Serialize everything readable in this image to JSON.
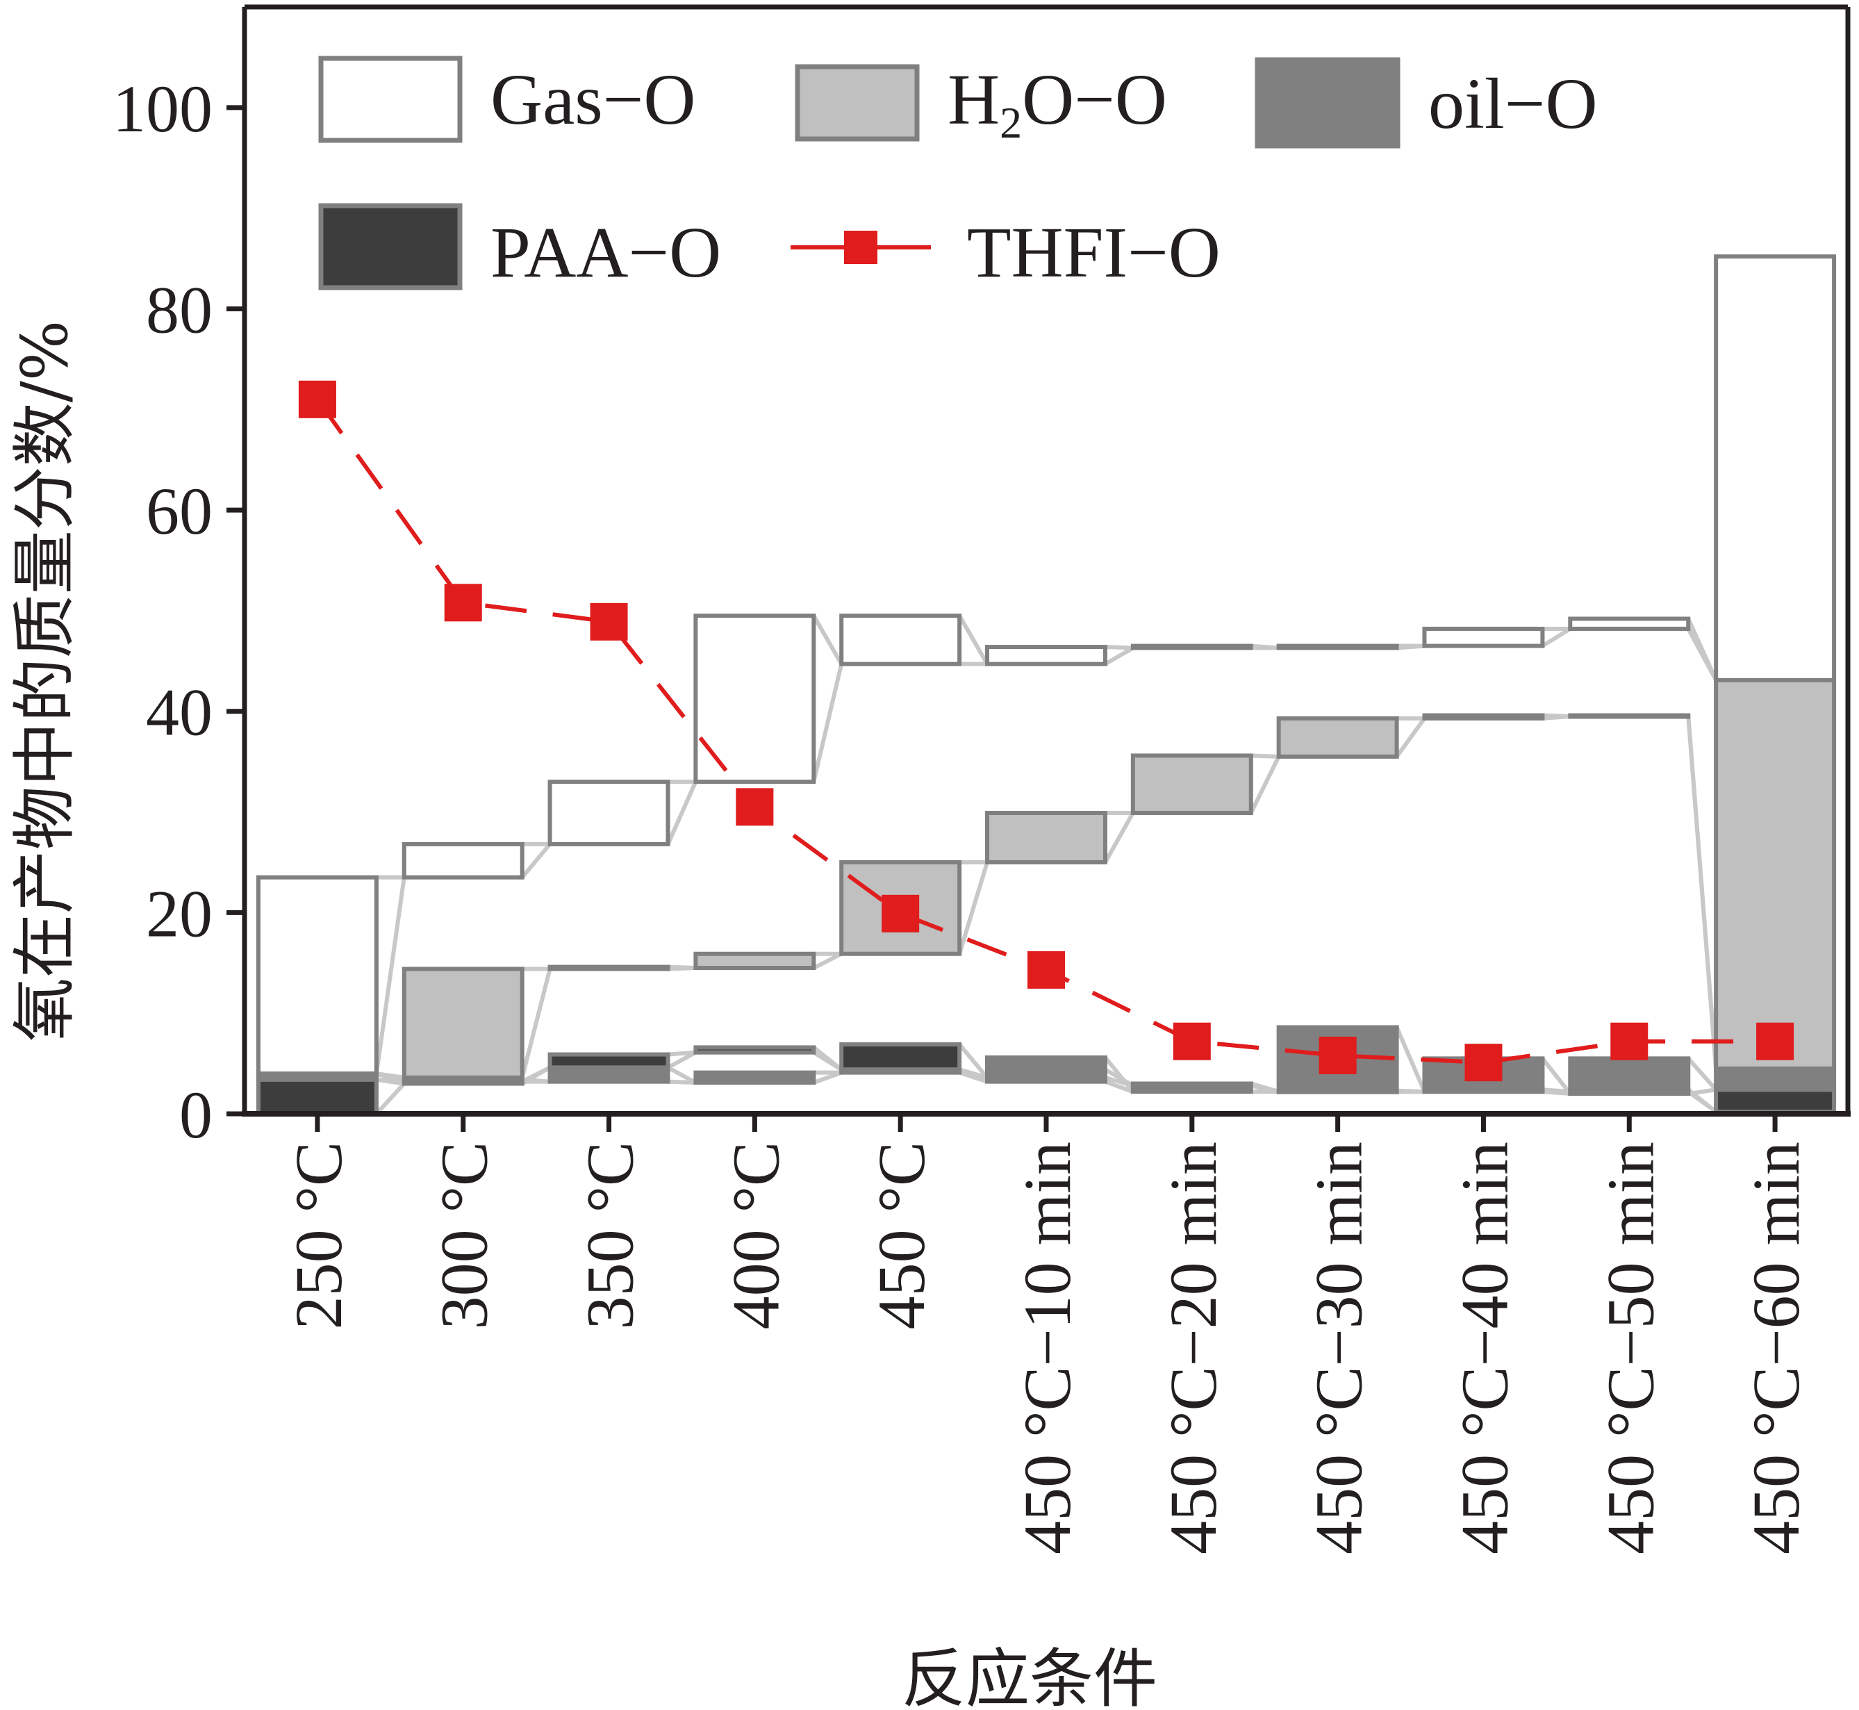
{
  "chart_data": {
    "type": "bar",
    "subtype": "waterfall",
    "title": "",
    "xlabel": "反应条件",
    "ylabel": "氧在产物中的质量分数/%",
    "ylim": [
      0,
      110
    ],
    "yticks": [
      0,
      20,
      40,
      60,
      80,
      100
    ],
    "grid": false,
    "legend_position": "top",
    "categories": [
      "250 °C",
      "300 °C",
      "350 °C",
      "400 °C",
      "450 °C",
      "450 °C−10 min",
      "450 °C−20 min",
      "450 °C−30 min",
      "450 °C−40 min",
      "450 °C−50 min",
      "450 °C−60 min"
    ],
    "series": [
      {
        "name": "PAA−O",
        "kind": "floating-bar",
        "color": "#3d3d3d",
        "ranges": [
          [
            0,
            3.4
          ],
          [
            3.0,
            3.2
          ],
          [
            4.6,
            5.9
          ],
          [
            6.1,
            6.6
          ],
          [
            4.4,
            6.9
          ],
          [
            3.6,
            4.4
          ],
          [
            2.8,
            3.0
          ],
          [
            2.2,
            2.3
          ],
          [
            2.2,
            2.4
          ],
          [
            2.2,
            2.4
          ],
          [
            0.2,
            2.4
          ]
        ]
      },
      {
        "name": "oil−O",
        "kind": "floating-bar",
        "color": "#808080",
        "ranges": [
          [
            3.4,
            4.0
          ],
          [
            3.2,
            3.4
          ],
          [
            3.2,
            4.6
          ],
          [
            3.1,
            4.1
          ],
          [
            4.1,
            4.4
          ],
          [
            3.2,
            5.6
          ],
          [
            2.2,
            3.0
          ],
          [
            2.2,
            8.6
          ],
          [
            2.2,
            5.5
          ],
          [
            2.0,
            5.5
          ],
          [
            2.4,
            4.5
          ]
        ]
      },
      {
        "name": "H₂O−O",
        "kind": "floating-bar",
        "color": "#c0c0c0",
        "ranges": [
          [
            3.9,
            4.0
          ],
          [
            3.6,
            14.4
          ],
          [
            14.4,
            14.6
          ],
          [
            14.5,
            15.9
          ],
          [
            15.9,
            25.0
          ],
          [
            25.0,
            29.9
          ],
          [
            29.9,
            35.6
          ],
          [
            35.5,
            39.3
          ],
          [
            39.3,
            39.6
          ],
          [
            39.5,
            39.6
          ],
          [
            4.5,
            43.1
          ]
        ]
      },
      {
        "name": "Gas−O",
        "kind": "floating-bar",
        "color": "#ffffff",
        "ranges": [
          [
            4.0,
            23.5
          ],
          [
            23.5,
            26.8
          ],
          [
            26.8,
            33.0
          ],
          [
            33.0,
            49.5
          ],
          [
            44.7,
            49.5
          ],
          [
            44.7,
            46.4
          ],
          [
            46.3,
            46.5
          ],
          [
            46.3,
            46.5
          ],
          [
            46.5,
            48.2
          ],
          [
            48.2,
            49.2
          ],
          [
            43.1,
            85.2
          ]
        ]
      },
      {
        "name": "THFI−O",
        "kind": "line",
        "color": "#e01c1c",
        "values": [
          71.0,
          50.8,
          48.9,
          30.5,
          19.9,
          14.3,
          7.2,
          5.8,
          5.1,
          7.2,
          7.2
        ]
      }
    ]
  },
  "legend": {
    "gas": "Gas−O",
    "h2o_pre": "H",
    "h2o_sub": "2",
    "h2o_post": "O−O",
    "oil": "oil−O",
    "paa": "PAA−O",
    "thfi": "THFI−O"
  },
  "colors": {
    "axis": "#231f20",
    "bar_stroke": "#808080",
    "connector": "#c8c8c8",
    "thfi": "#e01c1c"
  }
}
